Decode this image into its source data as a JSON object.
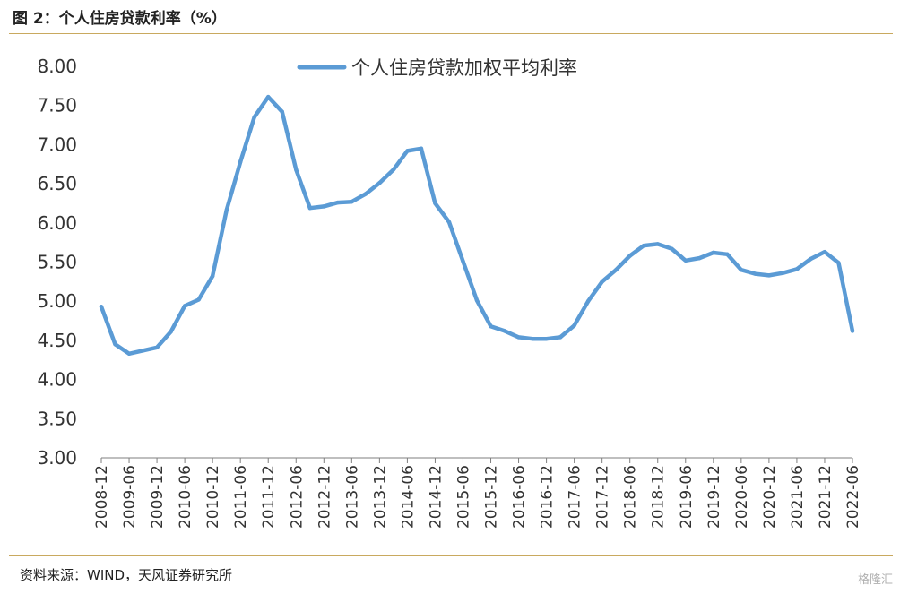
{
  "header": {
    "title": "图 2：个人住房贷款利率（%）"
  },
  "footer": {
    "source": "资料来源：WIND，天风证券研究所",
    "watermark": "格隆汇"
  },
  "colors": {
    "line": "#5b9bd5",
    "rule": "#c9a95f",
    "axis": "#7f7f7f"
  },
  "chart_data": {
    "type": "line",
    "title": "",
    "xlabel": "",
    "ylabel": "",
    "ylim": [
      3.0,
      8.0
    ],
    "yticks": [
      "3.00",
      "3.50",
      "4.00",
      "4.50",
      "5.00",
      "5.50",
      "6.00",
      "6.50",
      "7.00",
      "7.50",
      "8.00"
    ],
    "legend": "top-center",
    "grid": false,
    "categories": [
      "2008-12",
      "2009-03",
      "2009-06",
      "2009-09",
      "2009-12",
      "2010-03",
      "2010-06",
      "2010-09",
      "2010-12",
      "2011-03",
      "2011-06",
      "2011-09",
      "2011-12",
      "2012-03",
      "2012-06",
      "2012-09",
      "2012-12",
      "2013-03",
      "2013-06",
      "2013-09",
      "2013-12",
      "2014-03",
      "2014-06",
      "2014-09",
      "2014-12",
      "2015-03",
      "2015-06",
      "2015-09",
      "2015-12",
      "2016-03",
      "2016-06",
      "2016-09",
      "2016-12",
      "2017-03",
      "2017-06",
      "2017-09",
      "2017-12",
      "2018-03",
      "2018-06",
      "2018-09",
      "2018-12",
      "2019-03",
      "2019-06",
      "2019-09",
      "2019-12",
      "2020-03",
      "2020-06",
      "2020-09",
      "2020-12",
      "2021-03",
      "2021-06",
      "2021-09",
      "2021-12",
      "2022-03",
      "2022-06"
    ],
    "tick_labels": [
      "2008-12",
      "2009-06",
      "2009-12",
      "2010-06",
      "2010-12",
      "2011-06",
      "2011-12",
      "2012-06",
      "2012-12",
      "2013-06",
      "2013-12",
      "2014-06",
      "2014-12",
      "2015-06",
      "2015-12",
      "2016-06",
      "2016-12",
      "2017-06",
      "2017-12",
      "2018-06",
      "2018-12",
      "2019-06",
      "2019-12",
      "2020-06",
      "2020-12",
      "2021-06",
      "2021-12",
      "2022-06"
    ],
    "series": [
      {
        "name": "个人住房贷款加权平均利率",
        "values": [
          4.93,
          4.45,
          4.33,
          4.37,
          4.41,
          4.61,
          4.94,
          5.02,
          5.32,
          6.16,
          6.78,
          7.35,
          7.61,
          7.42,
          6.68,
          6.19,
          6.21,
          6.26,
          6.27,
          6.37,
          6.51,
          6.68,
          6.92,
          6.95,
          6.25,
          6.01,
          5.51,
          5.01,
          4.68,
          4.62,
          4.54,
          4.52,
          4.52,
          4.54,
          4.69,
          5.0,
          5.25,
          5.4,
          5.58,
          5.71,
          5.73,
          5.67,
          5.52,
          5.55,
          5.62,
          5.6,
          5.4,
          5.35,
          5.33,
          5.36,
          5.41,
          5.54,
          5.63,
          5.49,
          4.62
        ]
      }
    ]
  }
}
